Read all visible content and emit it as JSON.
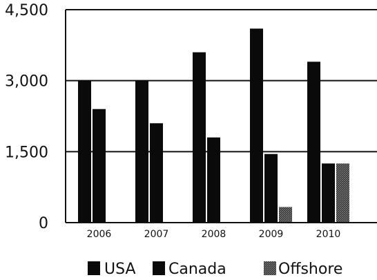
{
  "chart_data": {
    "type": "bar",
    "categories": [
      "2006",
      "2007",
      "2008",
      "2009",
      "2010"
    ],
    "series": [
      {
        "name": "USA",
        "values": [
          3000,
          3000,
          3600,
          4100,
          3400
        ],
        "color": "#0a0a0a"
      },
      {
        "name": "Canada",
        "values": [
          2400,
          2100,
          1800,
          1450,
          1250
        ],
        "color": "#0a0a0a"
      },
      {
        "name": "Offshore",
        "values": [
          0,
          0,
          0,
          330,
          1250
        ],
        "color": "#4a4a4a"
      }
    ],
    "yticks": [
      "0",
      "1,500",
      "3,000",
      "4,500"
    ],
    "ylim": [
      0,
      4500
    ],
    "legend": "bottom",
    "grid": true
  }
}
